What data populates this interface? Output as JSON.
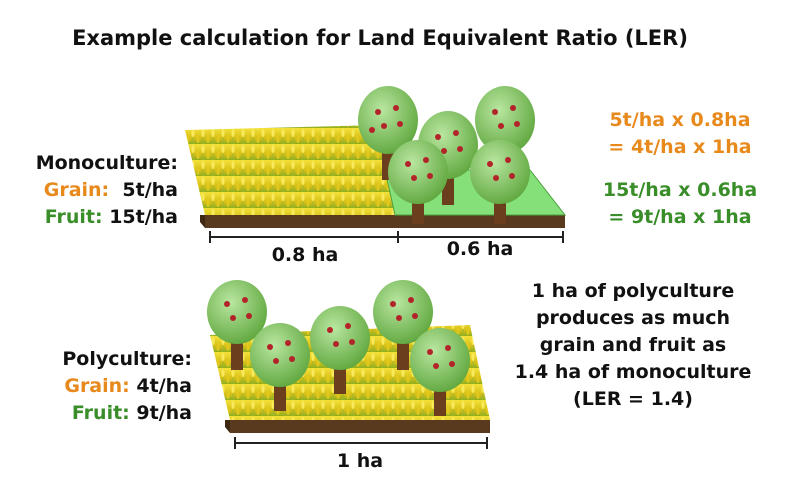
{
  "title": "Example calculation for Land Equivalent Ratio (LER)",
  "monoculture": {
    "heading": "Monoculture:",
    "grain_label": "Grain:",
    "grain_value": "5t/ha",
    "fruit_label": "Fruit:",
    "fruit_value": "15t/ha",
    "area_grain": "0.8 ha",
    "area_fruit": "0.6 ha"
  },
  "calc": {
    "grain_line1": "5t/ha x 0.8ha",
    "grain_line2": "= 4t/ha x 1ha",
    "fruit_line1": "15t/ha x 0.6ha",
    "fruit_line2": "= 9t/ha x 1ha"
  },
  "polyculture": {
    "heading": "Polyculture:",
    "grain_label": "Grain:",
    "grain_value": "4t/ha",
    "fruit_label": "Fruit:",
    "fruit_value": "9t/ha",
    "area": "1 ha"
  },
  "conclusion": {
    "line1": "1 ha of polyculture",
    "line2": "produces as much",
    "line3": "grain and fruit as",
    "line4": "1.4 ha of monoculture",
    "line5": "(LER = 1.4)"
  },
  "colors": {
    "grain": "#e8891c",
    "fruit": "#3a8e2a",
    "wheat": "#e8d21a",
    "soil": "#5a3a1e",
    "grass": "#86e07a",
    "canopy": "#7dc15a",
    "apple": "#b3242a"
  }
}
